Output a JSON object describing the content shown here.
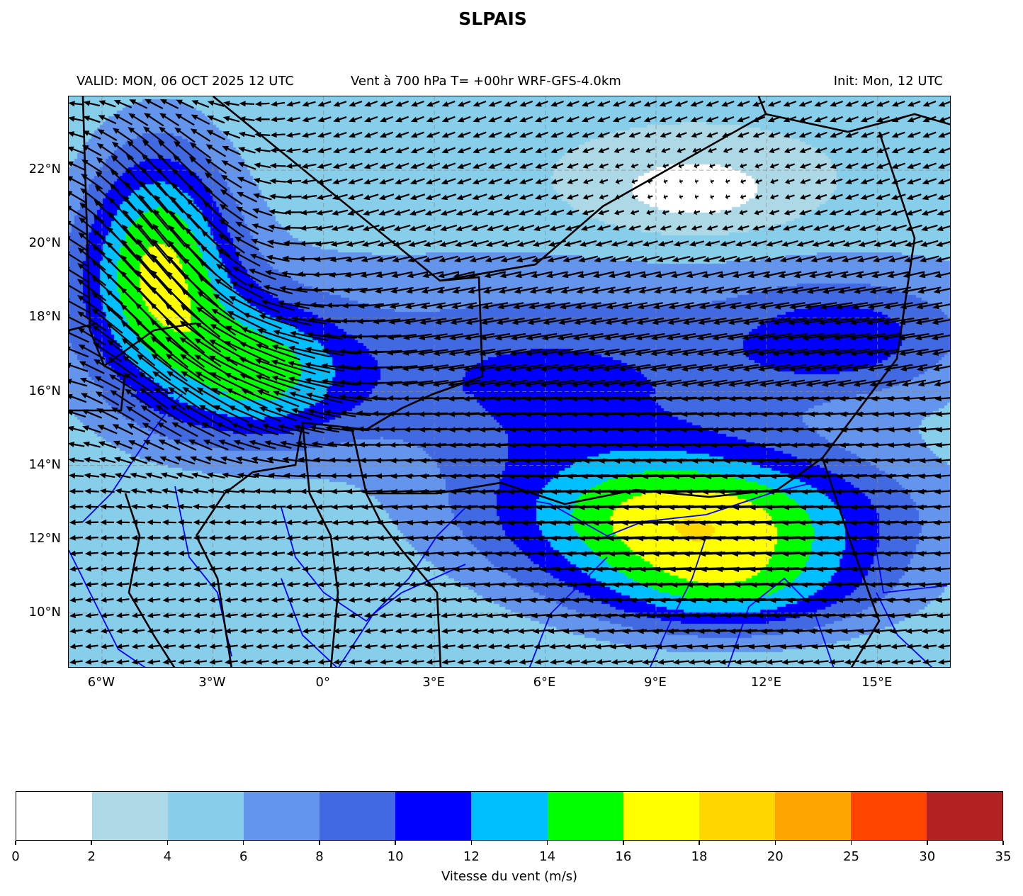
{
  "title": "SLPAIS",
  "subtitle": {
    "valid": "VALID: MON, 06 OCT 2025 12 UTC",
    "field": "Vent à 700 hPa T= +00hr  WRF-GFS-4.0km",
    "init": "Init: Mon, 12 UTC"
  },
  "map": {
    "lon_range": [
      -6.9,
      17.0
    ],
    "lat_range": [
      8.5,
      24.0
    ],
    "gridlines": true,
    "x_ticks": [
      {
        "value": -6,
        "label": "6°W"
      },
      {
        "value": -3,
        "label": "3°W"
      },
      {
        "value": 0,
        "label": "0°"
      },
      {
        "value": 3,
        "label": "3°E"
      },
      {
        "value": 6,
        "label": "6°E"
      },
      {
        "value": 9,
        "label": "9°E"
      },
      {
        "value": 12,
        "label": "12°E"
      },
      {
        "value": 15,
        "label": "15°E"
      }
    ],
    "y_ticks": [
      {
        "value": 22,
        "label": "22°N"
      },
      {
        "value": 20,
        "label": "20°N"
      },
      {
        "value": 18,
        "label": "18°N"
      },
      {
        "value": 16,
        "label": "16°N"
      },
      {
        "value": 14,
        "label": "14°N"
      },
      {
        "value": 12,
        "label": "12°N"
      },
      {
        "value": 10,
        "label": "10°N"
      }
    ],
    "border_color": "#000000",
    "river_color": "#0000ff",
    "arrow_color": "#000000"
  },
  "colorbar": {
    "label": "Vitesse du vent (m/s)",
    "levels": [
      "0",
      "2",
      "4",
      "6",
      "8",
      "10",
      "12",
      "14",
      "16",
      "18",
      "20",
      "25",
      "30",
      "35"
    ],
    "level_values": [
      0,
      2,
      4,
      6,
      8,
      10,
      12,
      14,
      16,
      18,
      20,
      25,
      30,
      35
    ],
    "colors": [
      "#ffffff",
      "#add8e6",
      "#87ceeb",
      "#6495ed",
      "#4169e1",
      "#0000ff",
      "#00bfff",
      "#00ff00",
      "#ffff00",
      "#ffd700",
      "#ffa500",
      "#ff4500",
      "#b22222"
    ]
  }
}
